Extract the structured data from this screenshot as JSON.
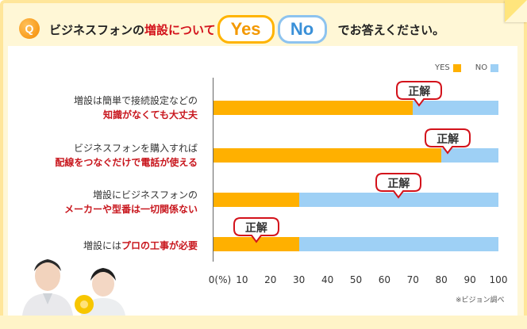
{
  "question": {
    "badge": "Q",
    "prefix": "ビジネスフォンの",
    "emphasis": "増設について",
    "yes_label": "Yes",
    "no_label": "No",
    "suffix": "でお答えください。"
  },
  "legend": [
    {
      "name": "YES",
      "color": "#ffb000"
    },
    {
      "name": "NO",
      "color": "#9ed0f5"
    }
  ],
  "questions": [
    {
      "line1": "増設は簡単で接続設定などの",
      "line2": "知識がなくても大丈夫"
    },
    {
      "line1": "ビジネスフォンを購入すれば",
      "line2": "配線をつなぐだけで電話が使える"
    },
    {
      "line1": "増設にビジネスフォンの",
      "line2": "メーカーや型番は一切関係ない"
    },
    {
      "line1_plain": "増設には",
      "line1_bold": "プロの工事が必要"
    }
  ],
  "callout_label": "正解",
  "source_note": "※ビジョン調べ",
  "chart_data": {
    "type": "bar",
    "orientation": "horizontal",
    "stacked": true,
    "categories": [
      "増設は簡単で接続設定などの知識がなくても大丈夫",
      "ビジネスフォンを購入すれば配線をつなぐだけで電話が使える",
      "増設にビジネスフォンのメーカーや型番は一切関係ない",
      "増設にはプロの工事が必要"
    ],
    "series": [
      {
        "name": "YES",
        "values": [
          70,
          80,
          30,
          30
        ],
        "color": "#ffb000"
      },
      {
        "name": "NO",
        "values": [
          30,
          20,
          70,
          70
        ],
        "color": "#9ed0f5"
      }
    ],
    "correct_answer": [
      "NO",
      "NO",
      "NO",
      "YES"
    ],
    "xlim": [
      0,
      100
    ],
    "x_ticks": [
      "0(%)",
      "10",
      "20",
      "30",
      "40",
      "50",
      "60",
      "70",
      "80",
      "90",
      "100"
    ],
    "legend_position": "top-right",
    "grid": false
  }
}
